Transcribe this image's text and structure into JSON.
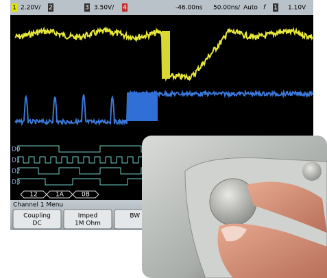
{
  "status_bar": {
    "ch1": "1",
    "ch1_scale": "2.20V/",
    "ch2": "2",
    "ch3": "3",
    "ch3_scale": "3.50V/",
    "ch4": "4",
    "delay": "-46.00ns",
    "timebase": "50.00ns/",
    "mode": "Auto",
    "trigger_icon": "f",
    "trigger_source": "1",
    "trigger_level": "1.10V"
  },
  "digital_labels": [
    "D0",
    "D1",
    "D2",
    "D3"
  ],
  "bus_values": [
    "12",
    "1A",
    "0B"
  ],
  "menu": {
    "title": "Channel 1 Menu",
    "softkeys": [
      {
        "label": "Coupling",
        "value": "DC"
      },
      {
        "label": "Imped",
        "value": "1M Ohm"
      },
      {
        "label": "BW Li"
      }
    ]
  }
}
